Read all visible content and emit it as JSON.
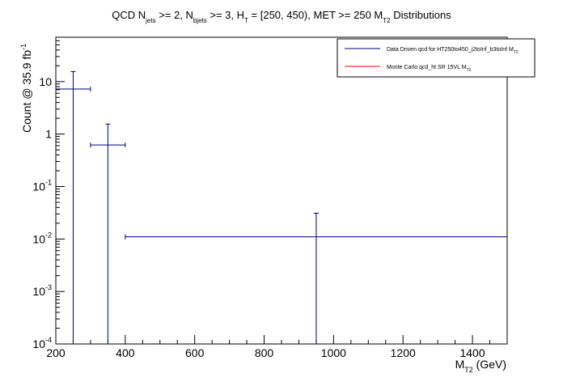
{
  "chart_data": {
    "type": "scatter",
    "title_parts": {
      "t1": "QCD N",
      "s1": "jets",
      "t2": " >= 2, N",
      "s2": "bjets",
      "t3": " >= 3, H",
      "s3": "T",
      "t4": " = [250, 450), MET >= 250 M",
      "s4": "T2",
      "t5": " Distributions"
    },
    "xlabel": {
      "main": "M",
      "sub": "T2",
      "rest": " (GeV)"
    },
    "ylabel": {
      "main": "Count @ 35.9 fb",
      "sup": "-1"
    },
    "x_ticks": [
      "200",
      "400",
      "600",
      "800",
      "1000",
      "1200",
      "1400"
    ],
    "y_ticks": [
      {
        "base": "10",
        "exp": "-4",
        "v": 0.0001
      },
      {
        "base": "10",
        "exp": "-3",
        "v": 0.001
      },
      {
        "base": "10",
        "exp": "-2",
        "v": 0.01
      },
      {
        "base": "10",
        "exp": "-1",
        "v": 0.1
      },
      {
        "base": "1",
        "exp": "",
        "v": 1
      },
      {
        "base": "10",
        "exp": "",
        "v": 10
      }
    ],
    "xlim": [
      200,
      1500
    ],
    "ylim": [
      0.0001,
      70
    ],
    "y_scale": "log",
    "grid": false,
    "legend_position": "top-right",
    "series": [
      {
        "name": "Data Driven qcd for HT250to450_j2toInf_b3toInf M",
        "name_sub": "T2",
        "color": "#000080",
        "points": [
          {
            "x": 250,
            "xlo": 200,
            "xhi": 300,
            "y": 7.2,
            "yhi": 15.5
          },
          {
            "x": 350,
            "xlo": 300,
            "xhi": 400,
            "y": 0.62,
            "yhi": 1.55
          },
          {
            "x": 950,
            "xlo": 400,
            "xhi": 1500,
            "y": 0.011,
            "yhi": 0.031
          }
        ]
      },
      {
        "name": "Monte Carlo qcd_ht SR 15VL M",
        "name_sub": "T2",
        "color": "#ff0000",
        "points": []
      }
    ]
  }
}
